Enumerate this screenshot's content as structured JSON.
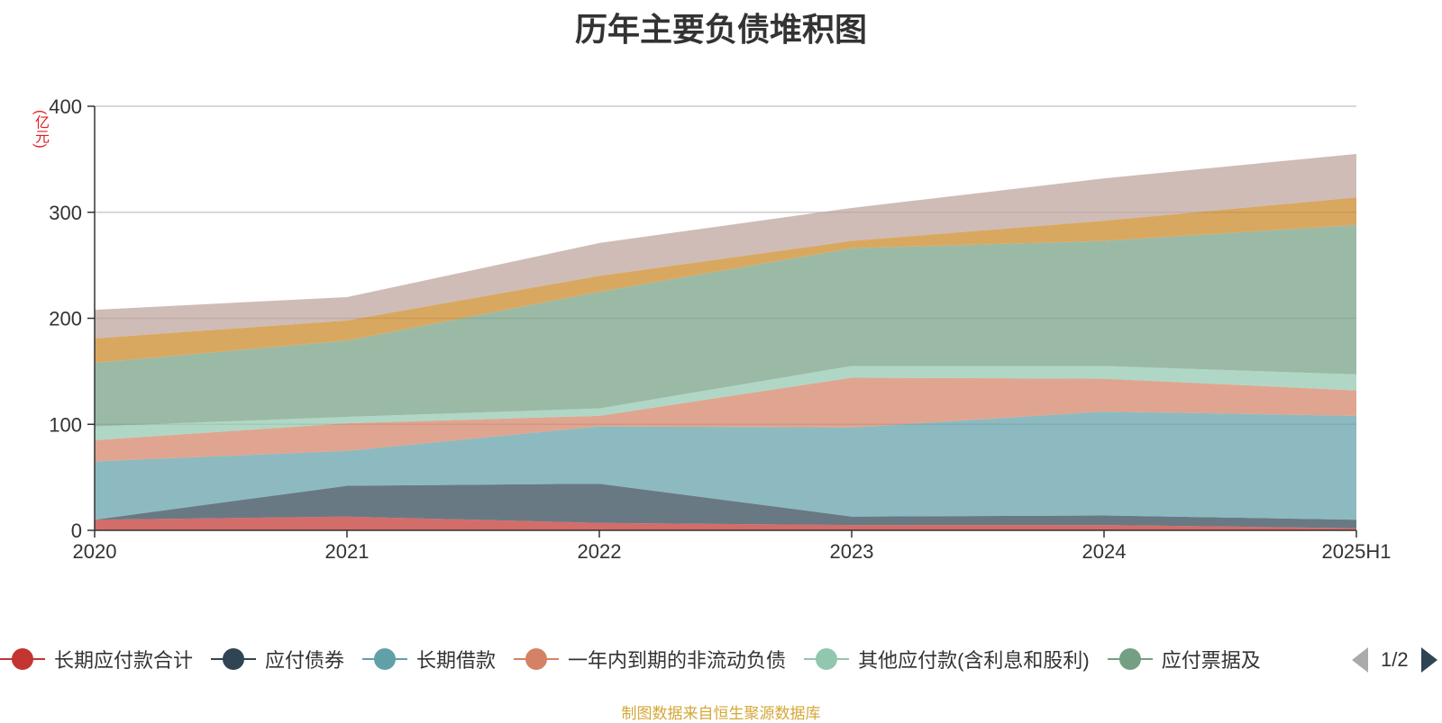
{
  "title": "历年主要负债堆积图",
  "y_unit": "(亿元)",
  "source_note": "制图数据来自恒生聚源数据库",
  "legend": {
    "items": [
      {
        "label": "长期应付款合计",
        "color": "#c23531"
      },
      {
        "label": "应付债券",
        "color": "#2f4554"
      },
      {
        "label": "长期借款",
        "color": "#61a0a8"
      },
      {
        "label": "一年内到期的非流动负债",
        "color": "#d48265"
      },
      {
        "label": "其他应付款(含利息和股利)",
        "color": "#91c7ae"
      },
      {
        "label": "应付票据及",
        "color": "#749f83"
      }
    ],
    "page_indicator": "1/2"
  },
  "chart_data": {
    "type": "area",
    "stacked": true,
    "categories": [
      "2020",
      "2021",
      "2022",
      "2023",
      "2024",
      "2025H1"
    ],
    "ylim": [
      0,
      400
    ],
    "yticks": [
      0,
      100,
      200,
      300,
      400
    ],
    "grid": true,
    "legend_position": "bottom",
    "series": [
      {
        "name": "长期应付款合计",
        "color": "#c23531",
        "values": [
          10,
          13,
          7,
          5,
          5,
          2
        ]
      },
      {
        "name": "应付债券",
        "color": "#2f4554",
        "values": [
          0,
          29,
          37,
          8,
          9,
          8
        ]
      },
      {
        "name": "长期借款",
        "color": "#61a0a8",
        "values": [
          55,
          33,
          54,
          84,
          98,
          98
        ]
      },
      {
        "name": "一年内到期的非流动负债",
        "color": "#d48265",
        "values": [
          20,
          26,
          10,
          47,
          31,
          24
        ]
      },
      {
        "name": "其他应付款(含利息和股利)",
        "color": "#91c7ae",
        "values": [
          13,
          6,
          7,
          11,
          12,
          15
        ]
      },
      {
        "name": "应付票据及",
        "color": "#749f83",
        "values": [
          60,
          72,
          110,
          111,
          118,
          141
        ]
      },
      {
        "color": "#ca8622",
        "values": [
          23,
          19,
          15,
          7,
          19,
          26
        ]
      },
      {
        "color": "#bda29a",
        "values": [
          27,
          22,
          31,
          31,
          40,
          41
        ]
      }
    ]
  }
}
